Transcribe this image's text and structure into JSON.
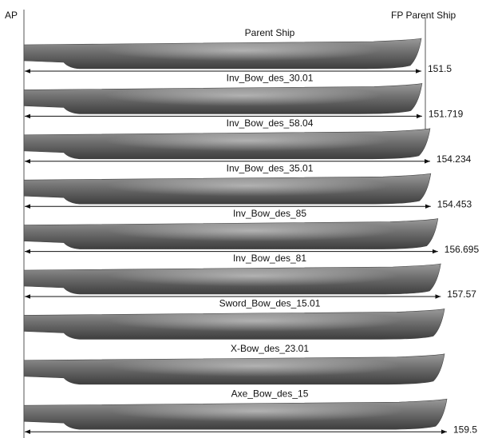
{
  "header": {
    "ap_label": "AP",
    "fp_label": "FP Parent Ship"
  },
  "hulls": [
    {
      "name": "Parent Ship",
      "length": 151.5
    },
    {
      "name": "Inv_Bow_des_30.01",
      "length": 151.719
    },
    {
      "name": "Inv_Bow_des_58.04",
      "length": 154.234
    },
    {
      "name": "Inv_Bow_des_35.01",
      "length": 154.453
    },
    {
      "name": "Inv_Bow_des_85",
      "length": 156.695
    },
    {
      "name": "Inv_Bow_des_81",
      "length": 157.57
    },
    {
      "name": "Sword_Bow_des_15.01"
    },
    {
      "name": "X-Bow_des_23.01"
    },
    {
      "name": "Axe_Bow_des_15",
      "length": 159.5
    }
  ]
}
